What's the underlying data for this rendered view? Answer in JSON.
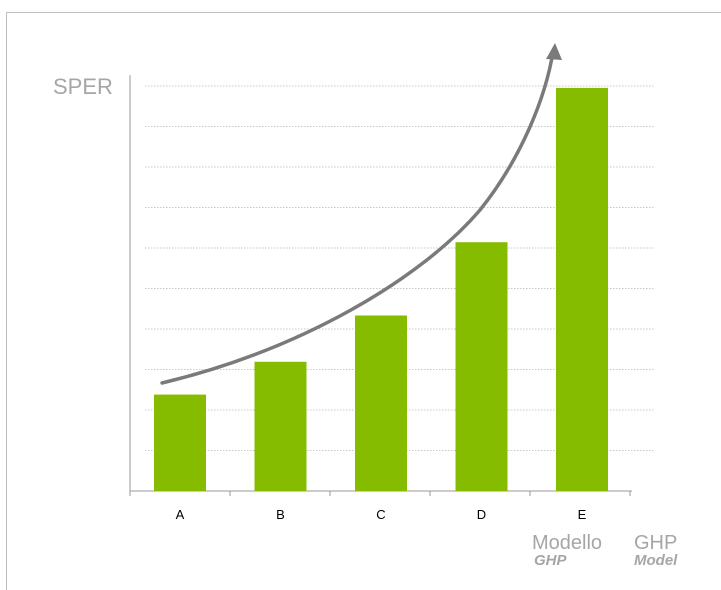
{
  "chart_data": {
    "type": "bar",
    "ylabel": "SPER",
    "categories": [
      "A",
      "B",
      "C",
      "D",
      "E"
    ],
    "values": [
      2.5,
      3.35,
      4.55,
      6.45,
      10.45
    ],
    "ylim": [
      0,
      10.5
    ],
    "grid": true,
    "bar_color": "#86bc00",
    "trend_arrow": true,
    "legend": [
      {
        "label": "Modello",
        "sub": "GHP"
      },
      {
        "label": "GHP",
        "sub": "Model"
      }
    ]
  },
  "colors": {
    "bar": "#86bc00",
    "grid": "#c8c8c8",
    "axis": "#9a9a9a",
    "arrow": "#7a7a7a",
    "label": "#a6a6a6"
  }
}
